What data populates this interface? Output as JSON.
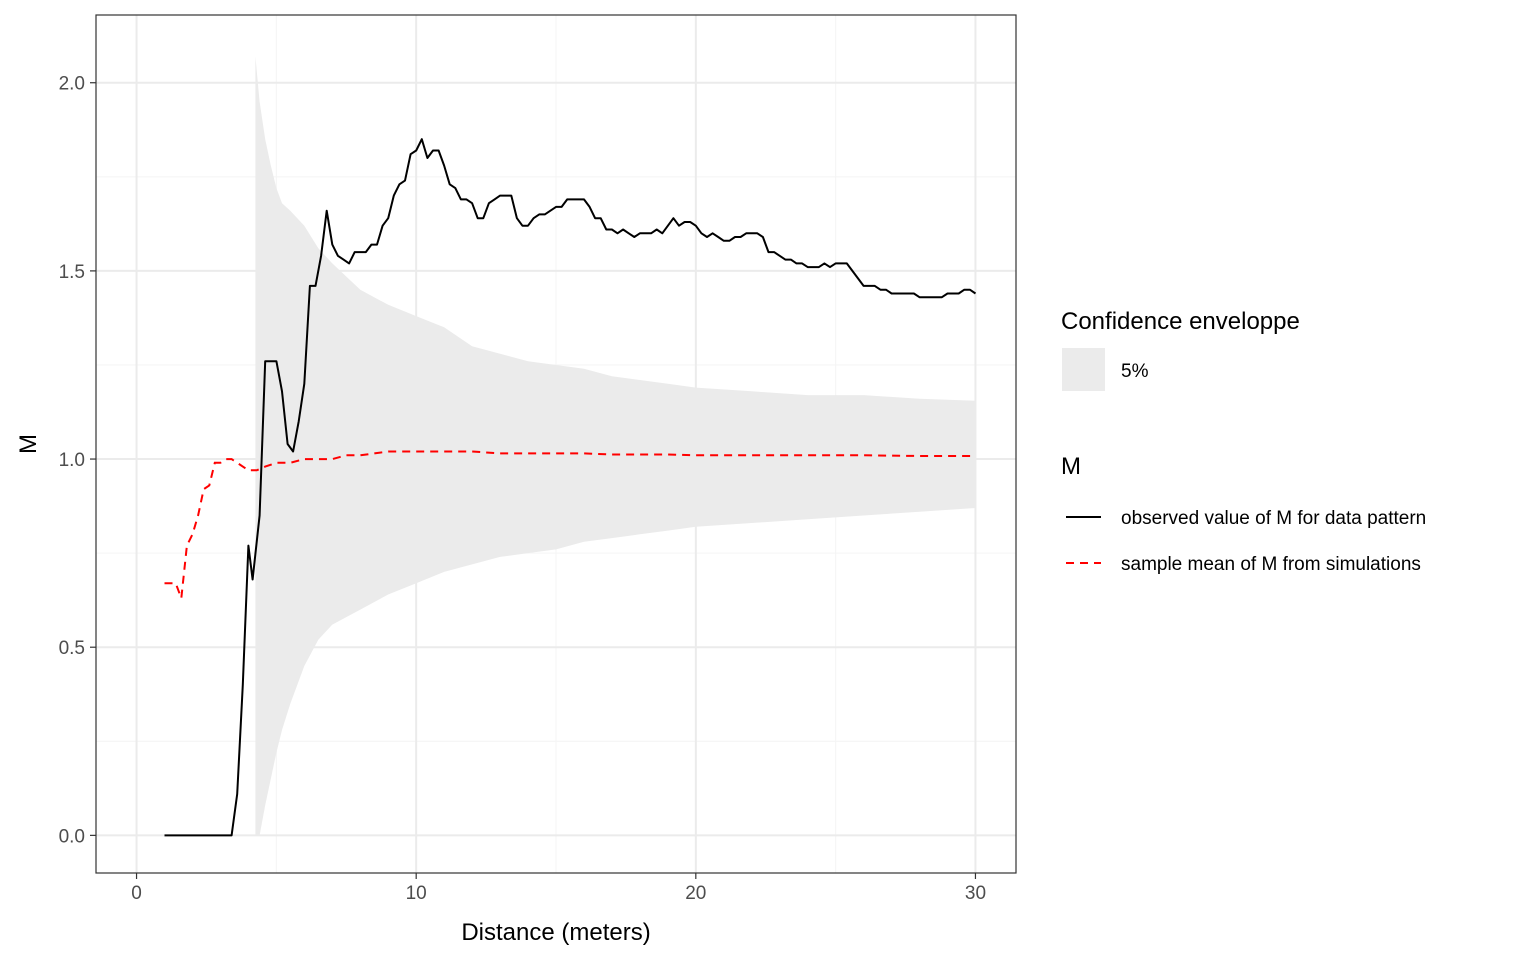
{
  "chart_data": {
    "type": "line",
    "xlabel": "Distance (meters)",
    "ylabel": "M",
    "xlim": [
      -1.45,
      31.45
    ],
    "ylim": [
      -0.1,
      2.18
    ],
    "x_ticks": [
      0,
      10,
      20,
      30
    ],
    "y_ticks": [
      0.0,
      0.5,
      1.0,
      1.5,
      2.0
    ],
    "x_tick_labels": [
      "0",
      "10",
      "20",
      "30"
    ],
    "y_tick_labels": [
      "0.0",
      "0.5",
      "1.0",
      "1.5",
      "2.0"
    ],
    "grid": true,
    "legend_position": "right",
    "colors": {
      "observed": "#000000",
      "mean": "#ff0000",
      "envelope": "#ebebeb",
      "grid_major": "#ebebeb",
      "grid_minor": "#f5f5f5",
      "panel_border": "#333333"
    },
    "legend": {
      "envelope_title": "Confidence enveloppe",
      "envelope_label": "5%",
      "lines_title": "M",
      "observed_label": "observed value of M for data pattern",
      "mean_label": "sample mean of M from simulations"
    },
    "envelope": {
      "x": [
        4.25,
        4.4,
        4.6,
        4.8,
        5.0,
        5.2,
        5.5,
        6.0,
        6.5,
        7.0,
        8.0,
        9.0,
        10.0,
        11.0,
        12.0,
        13.0,
        14.0,
        15.0,
        16.0,
        17.0,
        18.0,
        19.0,
        20.0,
        22.0,
        24.0,
        26.0,
        28.0,
        30.0
      ],
      "upper": [
        2.07,
        1.95,
        1.85,
        1.78,
        1.72,
        1.68,
        1.66,
        1.62,
        1.56,
        1.52,
        1.45,
        1.41,
        1.38,
        1.35,
        1.3,
        1.28,
        1.26,
        1.25,
        1.24,
        1.22,
        1.21,
        1.2,
        1.19,
        1.18,
        1.17,
        1.17,
        1.16,
        1.155
      ],
      "lower": [
        0.0,
        0.0,
        0.08,
        0.15,
        0.22,
        0.28,
        0.35,
        0.45,
        0.52,
        0.56,
        0.6,
        0.64,
        0.67,
        0.7,
        0.72,
        0.74,
        0.75,
        0.76,
        0.78,
        0.79,
        0.8,
        0.81,
        0.82,
        0.83,
        0.84,
        0.85,
        0.86,
        0.87
      ]
    },
    "series": [
      {
        "name": "observed value of M for data pattern",
        "x": [
          1.0,
          3.4,
          3.6,
          3.8,
          4.0,
          4.15,
          4.4,
          4.6,
          4.8,
          5.0,
          5.2,
          5.4,
          5.6,
          5.8,
          6.0,
          6.2,
          6.4,
          6.6,
          6.8,
          7.0,
          7.2,
          7.4,
          7.6,
          7.8,
          8.0,
          8.2,
          8.4,
          8.6,
          8.8,
          9.0,
          9.2,
          9.4,
          9.6,
          9.8,
          10.0,
          10.2,
          10.4,
          10.6,
          10.8,
          11.0,
          11.2,
          11.4,
          11.6,
          11.8,
          12.0,
          12.2,
          12.4,
          12.6,
          12.8,
          13.0,
          13.2,
          13.4,
          13.6,
          13.8,
          14.0,
          14.2,
          14.4,
          14.6,
          14.8,
          15.0,
          15.2,
          15.4,
          15.6,
          15.8,
          16.0,
          16.2,
          16.4,
          16.6,
          16.8,
          17.0,
          17.2,
          17.4,
          17.6,
          17.8,
          18.0,
          18.2,
          18.4,
          18.6,
          18.8,
          19.0,
          19.2,
          19.4,
          19.6,
          19.8,
          20.0,
          20.2,
          20.4,
          20.6,
          20.8,
          21.0,
          21.2,
          21.4,
          21.6,
          21.8,
          22.0,
          22.2,
          22.4,
          22.6,
          22.8,
          23.0,
          23.2,
          23.4,
          23.6,
          23.8,
          24.0,
          24.2,
          24.4,
          24.6,
          24.8,
          25.0,
          25.2,
          25.4,
          25.6,
          25.8,
          26.0,
          26.2,
          26.4,
          26.6,
          26.8,
          27.0,
          27.2,
          27.4,
          27.6,
          27.8,
          28.0,
          28.2,
          28.4,
          28.6,
          28.8,
          29.0,
          29.2,
          29.4,
          29.6,
          29.8,
          30.0
        ],
        "y": [
          0.0,
          0.0,
          0.11,
          0.4,
          0.77,
          0.68,
          0.85,
          1.26,
          1.26,
          1.26,
          1.18,
          1.04,
          1.02,
          1.1,
          1.2,
          1.46,
          1.46,
          1.54,
          1.66,
          1.57,
          1.54,
          1.53,
          1.52,
          1.55,
          1.55,
          1.55,
          1.57,
          1.57,
          1.62,
          1.64,
          1.7,
          1.73,
          1.74,
          1.81,
          1.82,
          1.85,
          1.8,
          1.82,
          1.82,
          1.78,
          1.73,
          1.72,
          1.69,
          1.69,
          1.68,
          1.64,
          1.64,
          1.68,
          1.69,
          1.7,
          1.7,
          1.7,
          1.64,
          1.62,
          1.62,
          1.64,
          1.65,
          1.65,
          1.66,
          1.67,
          1.67,
          1.69,
          1.69,
          1.69,
          1.69,
          1.67,
          1.64,
          1.64,
          1.61,
          1.61,
          1.6,
          1.61,
          1.6,
          1.59,
          1.6,
          1.6,
          1.6,
          1.61,
          1.6,
          1.62,
          1.64,
          1.62,
          1.63,
          1.63,
          1.62,
          1.6,
          1.59,
          1.6,
          1.59,
          1.58,
          1.58,
          1.59,
          1.59,
          1.6,
          1.6,
          1.6,
          1.59,
          1.55,
          1.55,
          1.54,
          1.53,
          1.53,
          1.52,
          1.52,
          1.51,
          1.51,
          1.51,
          1.52,
          1.51,
          1.52,
          1.52,
          1.52,
          1.5,
          1.48,
          1.46,
          1.46,
          1.46,
          1.45,
          1.45,
          1.44,
          1.44,
          1.44,
          1.44,
          1.44,
          1.43,
          1.43,
          1.43,
          1.43,
          1.43,
          1.44,
          1.44,
          1.44,
          1.45,
          1.45,
          1.44
        ]
      },
      {
        "name": "sample mean of M from simulations",
        "x": [
          1.0,
          1.2,
          1.4,
          1.6,
          1.8,
          2.0,
          2.2,
          2.4,
          2.6,
          2.8,
          3.0,
          3.2,
          3.4,
          3.6,
          3.8,
          4.0,
          4.3,
          4.6,
          5.0,
          5.5,
          6.0,
          6.5,
          7.0,
          7.5,
          8.0,
          9.0,
          10.0,
          11.0,
          12.0,
          13.0,
          14.0,
          15.0,
          16.0,
          17.0,
          18.0,
          19.0,
          20.0,
          22.0,
          24.0,
          26.0,
          28.0,
          30.0
        ],
        "y": [
          0.67,
          0.67,
          0.67,
          0.63,
          0.77,
          0.8,
          0.85,
          0.92,
          0.93,
          0.99,
          0.99,
          1.0,
          1.0,
          0.99,
          0.98,
          0.97,
          0.97,
          0.98,
          0.99,
          0.99,
          1.0,
          1.0,
          1.0,
          1.01,
          1.01,
          1.02,
          1.02,
          1.02,
          1.02,
          1.015,
          1.015,
          1.015,
          1.015,
          1.012,
          1.012,
          1.012,
          1.01,
          1.01,
          1.01,
          1.01,
          1.008,
          1.008
        ]
      }
    ]
  }
}
